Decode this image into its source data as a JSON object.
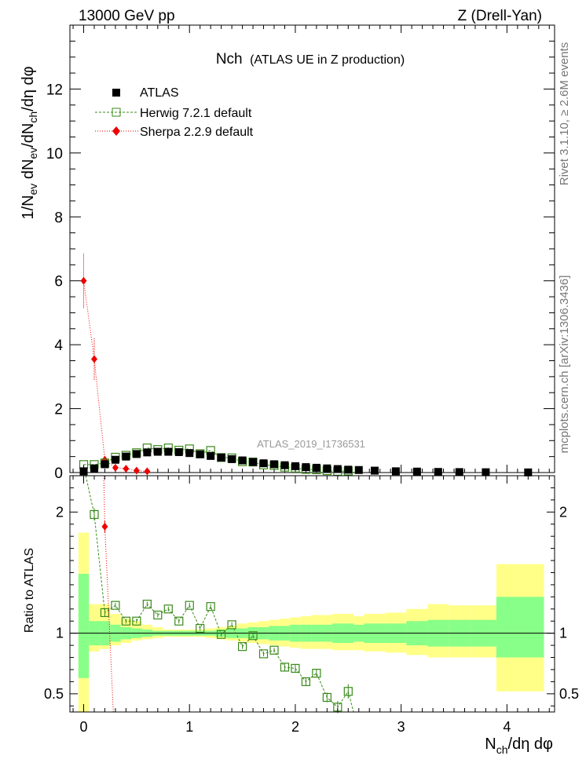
{
  "header": {
    "left": "13000 GeV pp",
    "right": "Z (Drell-Yan)"
  },
  "side": {
    "rivet": "Rivet 3.1.10, ≥ 2.6M events",
    "mcplots": "mcplots.cern.ch [arXiv:1306.3436]"
  },
  "colors": {
    "data": "#000000",
    "herwig": "#3a8a1a",
    "sherpa": "#ee0000",
    "band_outer": "#ffff88",
    "band_inner": "#88ff88"
  },
  "chart_data": [
    {
      "type": "scatter",
      "title": "Nch",
      "subtitle": "(ATLAS UE in Z production)",
      "analysis": "ATLAS_2019_I1736531",
      "ylabel": "1/N_ev dN_ev/dN_ch/dη dφ",
      "xlim": [
        -0.13,
        4.45
      ],
      "ylim": [
        0,
        14
      ],
      "yticks": [
        "0",
        "2",
        "4",
        "6",
        "8",
        "10",
        "12"
      ],
      "legend_position": "top-left",
      "series": [
        {
          "name": "ATLAS",
          "x": [
            0.0,
            0.1,
            0.2,
            0.3,
            0.4,
            0.5,
            0.6,
            0.7,
            0.8,
            0.9,
            1.0,
            1.1,
            1.2,
            1.3,
            1.4,
            1.5,
            1.6,
            1.7,
            1.8,
            1.9,
            2.0,
            2.1,
            2.2,
            2.3,
            2.4,
            2.5,
            2.6,
            2.75,
            2.95,
            3.15,
            3.35,
            3.55,
            3.8,
            4.2
          ],
          "values": [
            0.04,
            0.13,
            0.26,
            0.4,
            0.5,
            0.58,
            0.63,
            0.65,
            0.65,
            0.64,
            0.61,
            0.57,
            0.52,
            0.47,
            0.42,
            0.38,
            0.33,
            0.29,
            0.26,
            0.23,
            0.2,
            0.17,
            0.15,
            0.13,
            0.11,
            0.09,
            0.08,
            0.06,
            0.04,
            0.03,
            0.02,
            0.015,
            0.01,
            0.005
          ]
        },
        {
          "name": "Herwig 7.2.1 default",
          "x": [
            0.0,
            0.1,
            0.2,
            0.3,
            0.4,
            0.5,
            0.6,
            0.7,
            0.8,
            0.9,
            1.0,
            1.1,
            1.2,
            1.3,
            1.4,
            1.5,
            1.6,
            1.7,
            1.8,
            1.9,
            2.0,
            2.1,
            2.2,
            2.3,
            2.4,
            2.5
          ],
          "values": [
            0.25,
            0.25,
            0.3,
            0.48,
            0.54,
            0.62,
            0.77,
            0.72,
            0.77,
            0.7,
            0.74,
            0.59,
            0.69,
            0.47,
            0.46,
            0.34,
            0.33,
            0.24,
            0.22,
            0.17,
            0.14,
            0.1,
            0.09,
            0.06,
            0.04,
            0.05
          ]
        },
        {
          "name": "Sherpa 2.2.9 default",
          "x": [
            0.0,
            0.1,
            0.2,
            0.3,
            0.4,
            0.5,
            0.6
          ],
          "values": [
            6.0,
            3.55,
            0.4,
            0.15,
            0.12,
            0.06,
            0.04
          ],
          "errors": [
            0.85,
            0.65,
            0.15,
            0.05,
            0.04,
            0.03,
            0.02
          ]
        }
      ]
    },
    {
      "type": "scatter",
      "ylabel": "Ratio to ATLAS",
      "xlabel": "N_ch/dη dφ",
      "xlim": [
        -0.13,
        4.45
      ],
      "ylim": [
        0.35,
        2.3
      ],
      "xticks": [
        "0",
        "1",
        "2",
        "3",
        "4"
      ],
      "yticks": [
        "0.5",
        "1",
        "2"
      ],
      "bands": {
        "bin_edges": [
          -0.05,
          0.05,
          0.15,
          0.25,
          0.35,
          0.45,
          0.55,
          0.65,
          0.75,
          0.85,
          0.95,
          1.05,
          1.15,
          1.25,
          1.35,
          1.45,
          1.55,
          1.65,
          1.75,
          1.85,
          1.95,
          2.05,
          2.15,
          2.25,
          2.35,
          2.45,
          2.55,
          2.65,
          2.85,
          3.05,
          3.25,
          3.45,
          3.65,
          3.9,
          4.35
        ],
        "outer_lo": [
          0.35,
          0.85,
          0.87,
          0.9,
          0.92,
          0.94,
          0.95,
          0.96,
          0.97,
          0.97,
          0.97,
          0.97,
          0.96,
          0.95,
          0.94,
          0.93,
          0.92,
          0.91,
          0.9,
          0.89,
          0.88,
          0.87,
          0.87,
          0.87,
          0.86,
          0.86,
          0.86,
          0.85,
          0.84,
          0.82,
          0.8,
          0.8,
          0.8,
          0.52
        ],
        "outer_hi": [
          1.83,
          1.24,
          1.24,
          1.16,
          1.12,
          1.1,
          1.07,
          1.05,
          1.03,
          1.03,
          1.03,
          1.03,
          1.04,
          1.05,
          1.06,
          1.08,
          1.09,
          1.1,
          1.11,
          1.12,
          1.13,
          1.14,
          1.15,
          1.15,
          1.16,
          1.16,
          1.14,
          1.16,
          1.17,
          1.2,
          1.24,
          1.23,
          1.23,
          1.57
        ],
        "inner_lo": [
          0.63,
          0.9,
          0.9,
          0.93,
          0.95,
          0.96,
          0.97,
          0.98,
          0.98,
          0.98,
          0.98,
          0.98,
          0.98,
          0.97,
          0.96,
          0.96,
          0.95,
          0.95,
          0.94,
          0.94,
          0.93,
          0.93,
          0.93,
          0.93,
          0.92,
          0.92,
          0.93,
          0.92,
          0.92,
          0.9,
          0.89,
          0.89,
          0.89,
          0.8
        ],
        "inner_hi": [
          1.49,
          1.1,
          1.1,
          1.07,
          1.05,
          1.04,
          1.03,
          1.02,
          1.02,
          1.02,
          1.02,
          1.02,
          1.02,
          1.03,
          1.04,
          1.04,
          1.05,
          1.05,
          1.06,
          1.06,
          1.07,
          1.07,
          1.07,
          1.07,
          1.08,
          1.08,
          1.07,
          1.08,
          1.08,
          1.1,
          1.11,
          1.11,
          1.11,
          1.3
        ]
      },
      "series": [
        {
          "name": "Herwig 7.2.1 default",
          "x": [
            0.1,
            0.2,
            0.3,
            0.4,
            0.5,
            0.6,
            0.7,
            0.8,
            0.9,
            1.0,
            1.1,
            1.2,
            1.3,
            1.4,
            1.5,
            1.6,
            1.7,
            1.8,
            1.9,
            2.0,
            2.1,
            2.2,
            2.3,
            2.4,
            2.5
          ],
          "values": [
            1.98,
            1.17,
            1.23,
            1.1,
            1.1,
            1.24,
            1.15,
            1.2,
            1.1,
            1.23,
            1.04,
            1.22,
            0.99,
            1.07,
            0.89,
            0.98,
            0.83,
            0.86,
            0.72,
            0.71,
            0.6,
            0.67,
            0.47,
            0.39,
            0.52
          ],
          "errors": [
            0.05,
            0.03,
            0.02,
            0.02,
            0.02,
            0.02,
            0.02,
            0.02,
            0.02,
            0.02,
            0.02,
            0.02,
            0.02,
            0.02,
            0.02,
            0.02,
            0.02,
            0.02,
            0.03,
            0.03,
            0.03,
            0.03,
            0.04,
            0.05,
            0.06
          ]
        },
        {
          "name": "Sherpa 2.2.9 default",
          "x": [
            0.2
          ],
          "values": [
            1.88
          ],
          "errors": [
            0.05
          ]
        }
      ]
    }
  ]
}
